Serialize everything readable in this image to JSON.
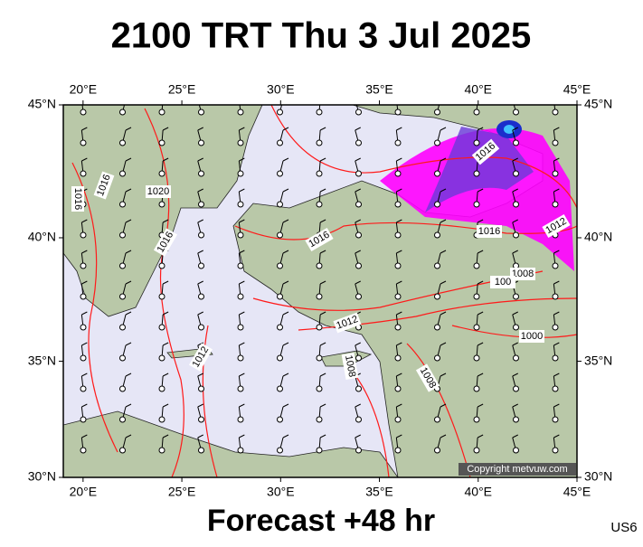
{
  "header": {
    "title": "2100 TRT Thu 3 Jul 2025"
  },
  "map": {
    "lon_range": [
      19,
      45
    ],
    "lat_range": [
      30,
      45
    ],
    "lon_ticks": [
      {
        "value": 20,
        "label": "20°E"
      },
      {
        "value": 25,
        "label": "25°E"
      },
      {
        "value": 30,
        "label": "30°E"
      },
      {
        "value": 35,
        "label": "35°E"
      },
      {
        "value": 40,
        "label": "40°E"
      },
      {
        "value": 45,
        "label": "45°E"
      }
    ],
    "lat_ticks": [
      {
        "value": 45,
        "label": "45°N"
      },
      {
        "value": 40,
        "label": "40°N"
      },
      {
        "value": 35,
        "label": "35°N"
      },
      {
        "value": 30,
        "label": "30°N"
      }
    ],
    "isobar_labels": [
      "1016",
      "1016",
      "1020",
      "1016",
      "1016",
      "1016",
      "1016",
      "1012",
      "1008",
      "100",
      "1012",
      "1000",
      "1012",
      "1008",
      "1008"
    ],
    "copyright": "Copyright metvuw.com"
  },
  "footer": {
    "text": "Forecast +48 hr",
    "code": "US6"
  }
}
